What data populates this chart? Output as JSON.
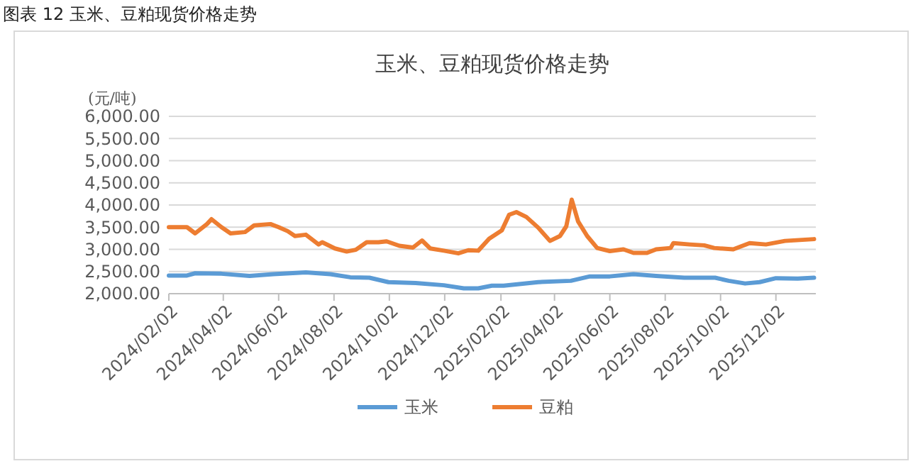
{
  "chart_data": {
    "type": "line",
    "title": "玉米、豆粕现货价格走势",
    "ylabel": "(元/吨)",
    "annotations": [
      "图表 12 玉米、豆粕现货价格走势"
    ],
    "xlim": [
      "2024-02-02",
      "2026-01-15"
    ],
    "xticks": [
      {
        "value": "2024-02-02",
        "label": "2024/02/02"
      },
      {
        "value": "2024-04-02",
        "label": "2024/04/02"
      },
      {
        "value": "2024-06-02",
        "label": "2024/06/02"
      },
      {
        "value": "2024-08-02",
        "label": "2024/08/02"
      },
      {
        "value": "2024-10-02",
        "label": "2024/10/02"
      },
      {
        "value": "2024-12-02",
        "label": "2024/12/02"
      },
      {
        "value": "2025-02-02",
        "label": "2025/02/02"
      },
      {
        "value": "2025-04-02",
        "label": "2025/04/02"
      },
      {
        "value": "2025-06-02",
        "label": "2025/06/02"
      },
      {
        "value": "2025-08-02",
        "label": "2025/08/02"
      },
      {
        "value": "2025-10-02",
        "label": "2025/10/02"
      },
      {
        "value": "2025-12-02",
        "label": "2025/12/02"
      }
    ],
    "ylim": [
      2000,
      6000
    ],
    "yticks": [
      {
        "value": 2000,
        "label": "2,000.00"
      },
      {
        "value": 2500,
        "label": "2,500.00"
      },
      {
        "value": 3000,
        "label": "3,000.00"
      },
      {
        "value": 3500,
        "label": "3,500.00"
      },
      {
        "value": 4000,
        "label": "4,000.00"
      },
      {
        "value": 4500,
        "label": "4,500.00"
      },
      {
        "value": 5000,
        "label": "5,000.00"
      },
      {
        "value": 5500,
        "label": "5,500.00"
      },
      {
        "value": 6000,
        "label": "6,000.00"
      }
    ],
    "grid": "y",
    "legend": "bottom",
    "marker": "none",
    "line_style": "solid",
    "series": [
      {
        "name": "玉米",
        "color": "#5b9bd5",
        "x": [
          "2024-02-02",
          "2024-02-22",
          "2024-03-02",
          "2024-03-31",
          "2024-05-01",
          "2024-05-27",
          "2024-07-02",
          "2024-07-29",
          "2024-08-20",
          "2024-09-10",
          "2024-10-01",
          "2024-10-31",
          "2024-12-01",
          "2024-12-23",
          "2025-01-08",
          "2025-01-23",
          "2025-02-05",
          "2025-03-15",
          "2025-04-20",
          "2025-05-11",
          "2025-06-02",
          "2025-06-28",
          "2025-07-23",
          "2025-08-23",
          "2025-09-26",
          "2025-10-11",
          "2025-10-29",
          "2025-11-14",
          "2025-12-02",
          "2025-12-26",
          "2026-01-13"
        ],
        "values": [
          2410,
          2410,
          2460,
          2450,
          2400,
          2440,
          2480,
          2440,
          2370,
          2360,
          2260,
          2240,
          2190,
          2120,
          2120,
          2180,
          2180,
          2260,
          2290,
          2390,
          2390,
          2440,
          2400,
          2360,
          2360,
          2290,
          2230,
          2260,
          2350,
          2340,
          2360
        ]
      },
      {
        "name": "豆粕",
        "color": "#ed7d31",
        "x": [
          "2024-02-02",
          "2024-02-22",
          "2024-03-02",
          "2024-03-15",
          "2024-03-20",
          "2024-03-31",
          "2024-04-10",
          "2024-04-26",
          "2024-05-06",
          "2024-05-24",
          "2024-06-02",
          "2024-06-12",
          "2024-06-20",
          "2024-07-02",
          "2024-07-16",
          "2024-07-20",
          "2024-08-03",
          "2024-08-16",
          "2024-08-26",
          "2024-09-07",
          "2024-09-20",
          "2024-09-29",
          "2024-10-13",
          "2024-10-28",
          "2024-11-07",
          "2024-11-16",
          "2024-12-01",
          "2024-12-17",
          "2024-12-28",
          "2025-01-08",
          "2025-01-20",
          "2025-02-03",
          "2025-02-11",
          "2025-02-19",
          "2025-03-02",
          "2025-03-15",
          "2025-03-28",
          "2025-04-08",
          "2025-04-15",
          "2025-04-21",
          "2025-04-28",
          "2025-05-08",
          "2025-05-19",
          "2025-06-02",
          "2025-06-17",
          "2025-06-28",
          "2025-07-13",
          "2025-07-23",
          "2025-08-08",
          "2025-08-11",
          "2025-08-29",
          "2025-09-14",
          "2025-09-25",
          "2025-10-16",
          "2025-11-03",
          "2025-11-21",
          "2025-12-12",
          "2025-12-28",
          "2026-01-13"
        ],
        "values": [
          3500,
          3500,
          3360,
          3570,
          3680,
          3500,
          3360,
          3390,
          3540,
          3570,
          3500,
          3410,
          3300,
          3330,
          3110,
          3160,
          3020,
          2950,
          2990,
          3160,
          3160,
          3180,
          3080,
          3040,
          3200,
          3020,
          2970,
          2910,
          2980,
          2970,
          3240,
          3430,
          3780,
          3840,
          3730,
          3490,
          3190,
          3300,
          3520,
          4120,
          3630,
          3300,
          3030,
          2960,
          3000,
          2920,
          2920,
          3000,
          3030,
          3140,
          3110,
          3090,
          3030,
          3000,
          3140,
          3110,
          3190,
          3210,
          3230
        ]
      }
    ]
  }
}
